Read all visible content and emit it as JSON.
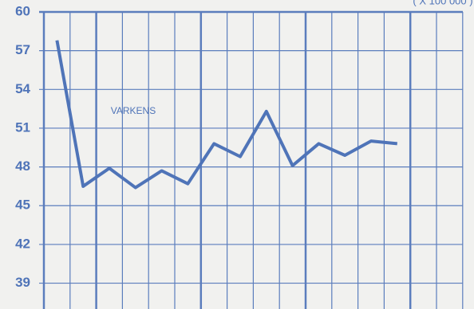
{
  "chart_data": {
    "type": "line",
    "unit_note": "( X 100 000 )",
    "series": [
      {
        "name": "VARKENS",
        "color": "#4f74b8",
        "values": [
          57.8,
          46.5,
          47.9,
          46.4,
          47.7,
          46.7,
          49.8,
          48.8,
          52.3,
          48.1,
          49.8,
          48.9,
          50.0,
          49.8
        ]
      }
    ],
    "ylim": [
      37,
      60
    ],
    "yticks": [
      39,
      42,
      45,
      48,
      51,
      54,
      57,
      60
    ],
    "grid": true
  }
}
